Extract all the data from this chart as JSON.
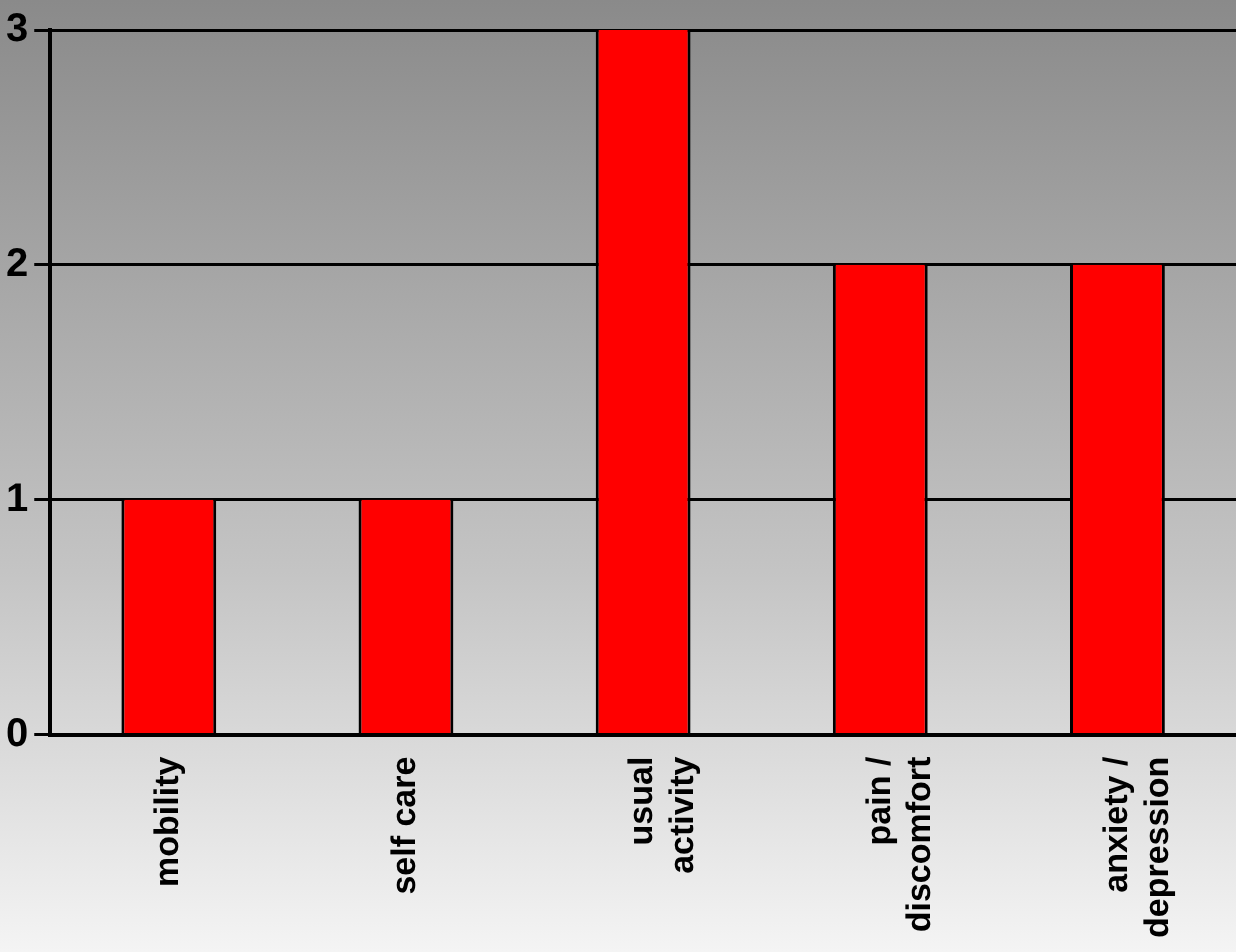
{
  "chart_data": {
    "type": "bar",
    "categories": [
      "mobility",
      "self care",
      "usual activity",
      "pain / discomfort",
      "anxiety / depression"
    ],
    "values": [
      1,
      1,
      3,
      2,
      2
    ],
    "color": "#ff0000",
    "ylim": [
      0,
      3
    ],
    "yticks": [
      0,
      1,
      2,
      3
    ],
    "grid": "y"
  }
}
